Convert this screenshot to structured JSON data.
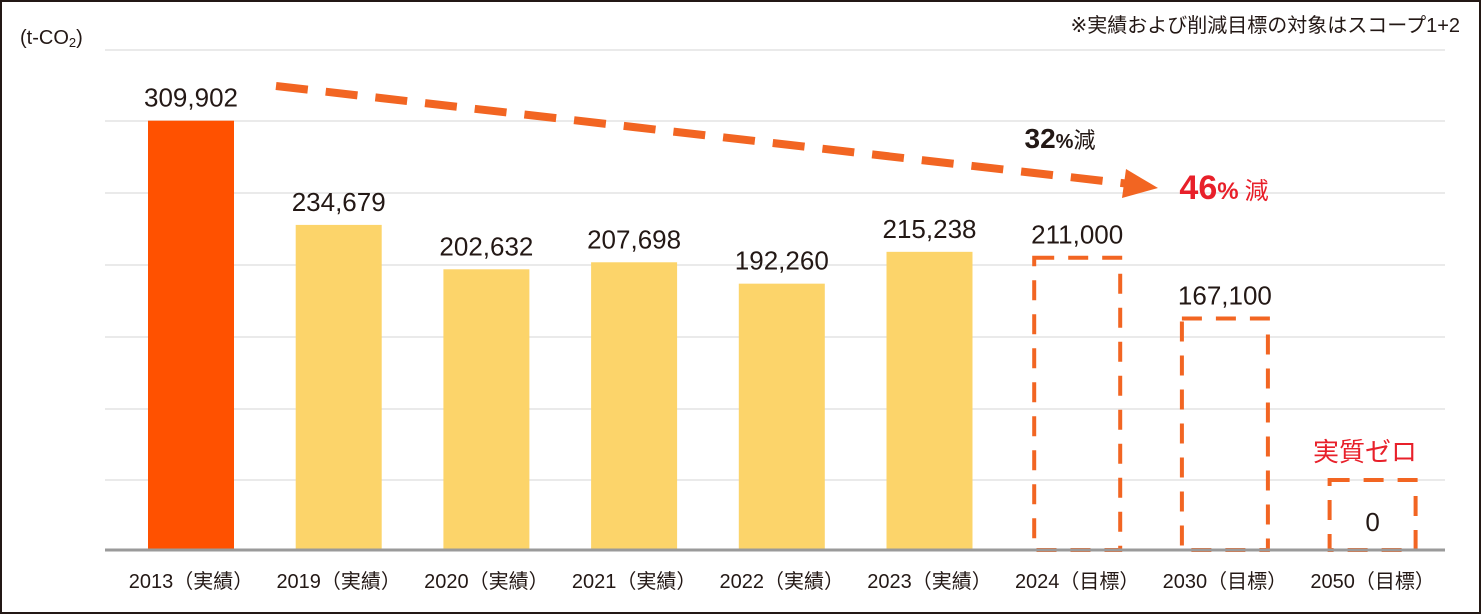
{
  "chart_data": {
    "type": "bar",
    "unit_label": "(t-CO₂)",
    "unit_text": "(t-CO",
    "unit_sub": "2",
    "unit_close": ")",
    "note": "※実績および削減目標の対象はスコープ1+2",
    "categories": [
      "2013（実績）",
      "2019（実績）",
      "2020（実績）",
      "2021（実績）",
      "2022（実績）",
      "2023（実績）",
      "2024（目標）",
      "2030（目標）",
      "2050（目標）"
    ],
    "values": [
      309902,
      234679,
      202632,
      207698,
      192260,
      215238,
      211000,
      167100,
      0
    ],
    "value_labels": [
      "309,902",
      "234,679",
      "202,632",
      "207,698",
      "192,260",
      "215,238",
      "211,000",
      "167,100",
      "0"
    ],
    "bar_kinds": [
      "base",
      "actual",
      "actual",
      "actual",
      "actual",
      "actual",
      "target",
      "target",
      "target"
    ],
    "ylim": [
      0,
      340000
    ],
    "grid": true,
    "annotations": {
      "reduction_2024": "32%減",
      "reduction_2030": "46%減",
      "net_zero": "実質ゼロ"
    },
    "colors": {
      "base": "#ff5100",
      "actual": "#fcd46a",
      "target": "#f26522",
      "arrow": "#f26522",
      "highlight": "#e8202a",
      "text": "#231815",
      "grid": "#e3e3e3",
      "axis": "#9a9a9a"
    }
  }
}
